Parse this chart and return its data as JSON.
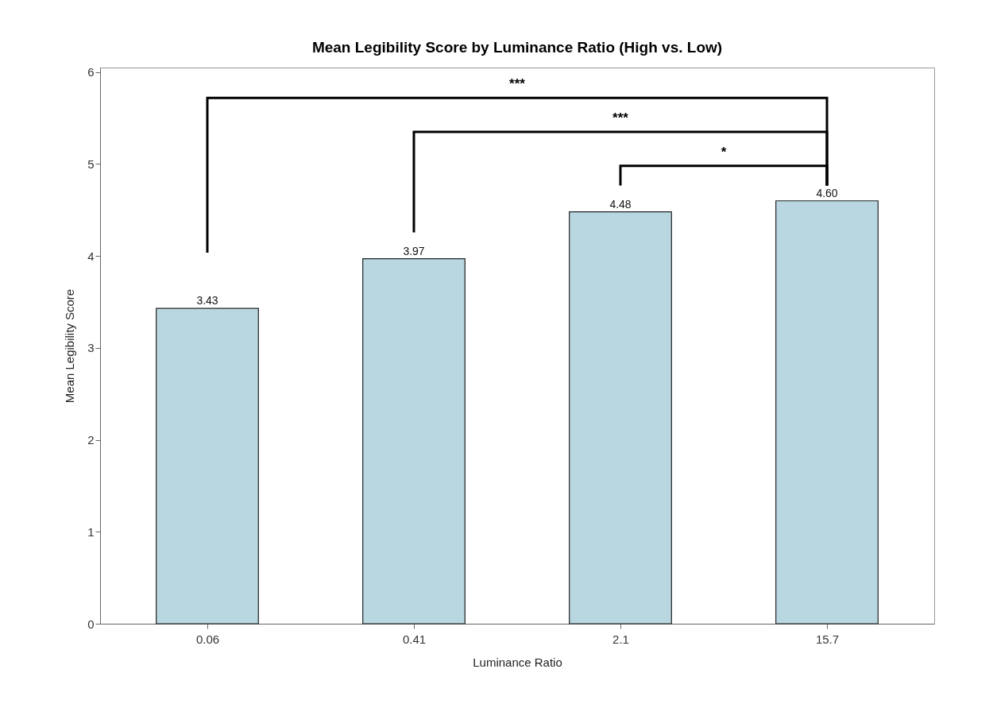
{
  "chart_data": {
    "type": "bar",
    "title": "Mean Legibility Score by Luminance Ratio (High vs. Low)",
    "xlabel": "Luminance Ratio",
    "ylabel": "Mean Legibility Score",
    "categories": [
      "0.06",
      "0.41",
      "2.1",
      "15.7"
    ],
    "values": [
      3.43,
      3.97,
      4.48,
      4.6
    ],
    "value_labels": [
      "3.43",
      "3.97",
      "4.48",
      "4.60"
    ],
    "color": "#b9d7e0",
    "ylim": [
      0,
      6.05
    ],
    "yticks": [
      {
        "value": 0,
        "label": "0"
      },
      {
        "value": 1,
        "label": "1"
      },
      {
        "value": 2,
        "label": "2"
      },
      {
        "value": 3,
        "label": "3"
      },
      {
        "value": 4,
        "label": "4"
      },
      {
        "value": 5,
        "label": "5"
      },
      {
        "value": 6,
        "label": "6"
      }
    ],
    "grid": false,
    "annotations": [
      "***",
      "***",
      "*"
    ]
  }
}
